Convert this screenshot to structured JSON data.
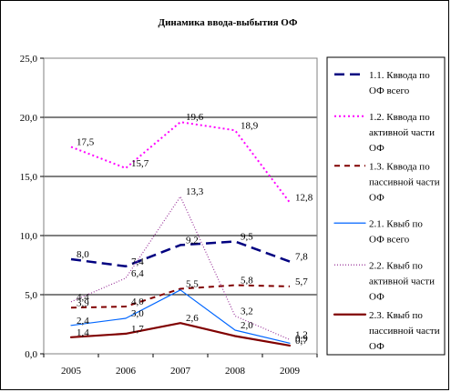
{
  "chart_data": {
    "type": "line",
    "title": "Динамика ввода-выбытия ОФ",
    "categories": [
      "2005",
      "2006",
      "2007",
      "2008",
      "2009"
    ],
    "ylim": [
      0,
      25
    ],
    "yticks": [
      "0,0",
      "5,0",
      "10,0",
      "15,0",
      "20,0",
      "25,0"
    ],
    "grid": true,
    "legend_position": "right",
    "series": [
      {
        "name": [
          "1.1. Кввода  по",
          "ОФ всего"
        ],
        "values": [
          8.0,
          7.4,
          9.2,
          9.5,
          7.8
        ],
        "labels": [
          "8,0",
          "7,4",
          "9,2",
          "9,5",
          "7,8"
        ],
        "color": "#000080",
        "style": "long-dash"
      },
      {
        "name": [
          "1.2. Кввода по",
          "активной части",
          "ОФ"
        ],
        "values": [
          17.5,
          15.7,
          19.6,
          18.9,
          12.8
        ],
        "labels": [
          "17,5",
          "15,7",
          "19,6",
          "18,9",
          "12,8"
        ],
        "color": "#ff00ff",
        "style": "dot"
      },
      {
        "name": [
          "1.3. Кввода по",
          "пассивной части",
          "ОФ"
        ],
        "values": [
          3.9,
          4.0,
          5.5,
          5.8,
          5.7
        ],
        "labels": [
          "3,9",
          "4,0",
          "5,5",
          "5,8",
          "5,7"
        ],
        "color": "#800000",
        "style": "dash"
      },
      {
        "name": [
          "2.1. Квыб  по",
          "ОФ всего"
        ],
        "values": [
          2.4,
          3.0,
          5.4,
          2.0,
          0.9
        ],
        "labels": [
          "2,4",
          "3,0",
          "",
          "2,0",
          "0,9"
        ],
        "color": "#0066ff",
        "style": "solid-thin"
      },
      {
        "name": [
          "2.2. Квыб по",
          "активной части",
          "ОФ"
        ],
        "values": [
          4.4,
          6.4,
          13.3,
          3.2,
          1.2
        ],
        "labels": [
          "4,4",
          "6,4",
          "13,3",
          "3,2",
          "1,2"
        ],
        "color": "#993399",
        "style": "dot-fine"
      },
      {
        "name": [
          "2.3. Квыб  по",
          "пассивной части",
          "ОФ"
        ],
        "values": [
          1.4,
          1.7,
          2.6,
          1.5,
          0.7
        ],
        "labels": [
          "1,4",
          "1,7",
          "2,6",
          "",
          "0,7"
        ],
        "color": "#800000",
        "style": "solid"
      }
    ]
  }
}
